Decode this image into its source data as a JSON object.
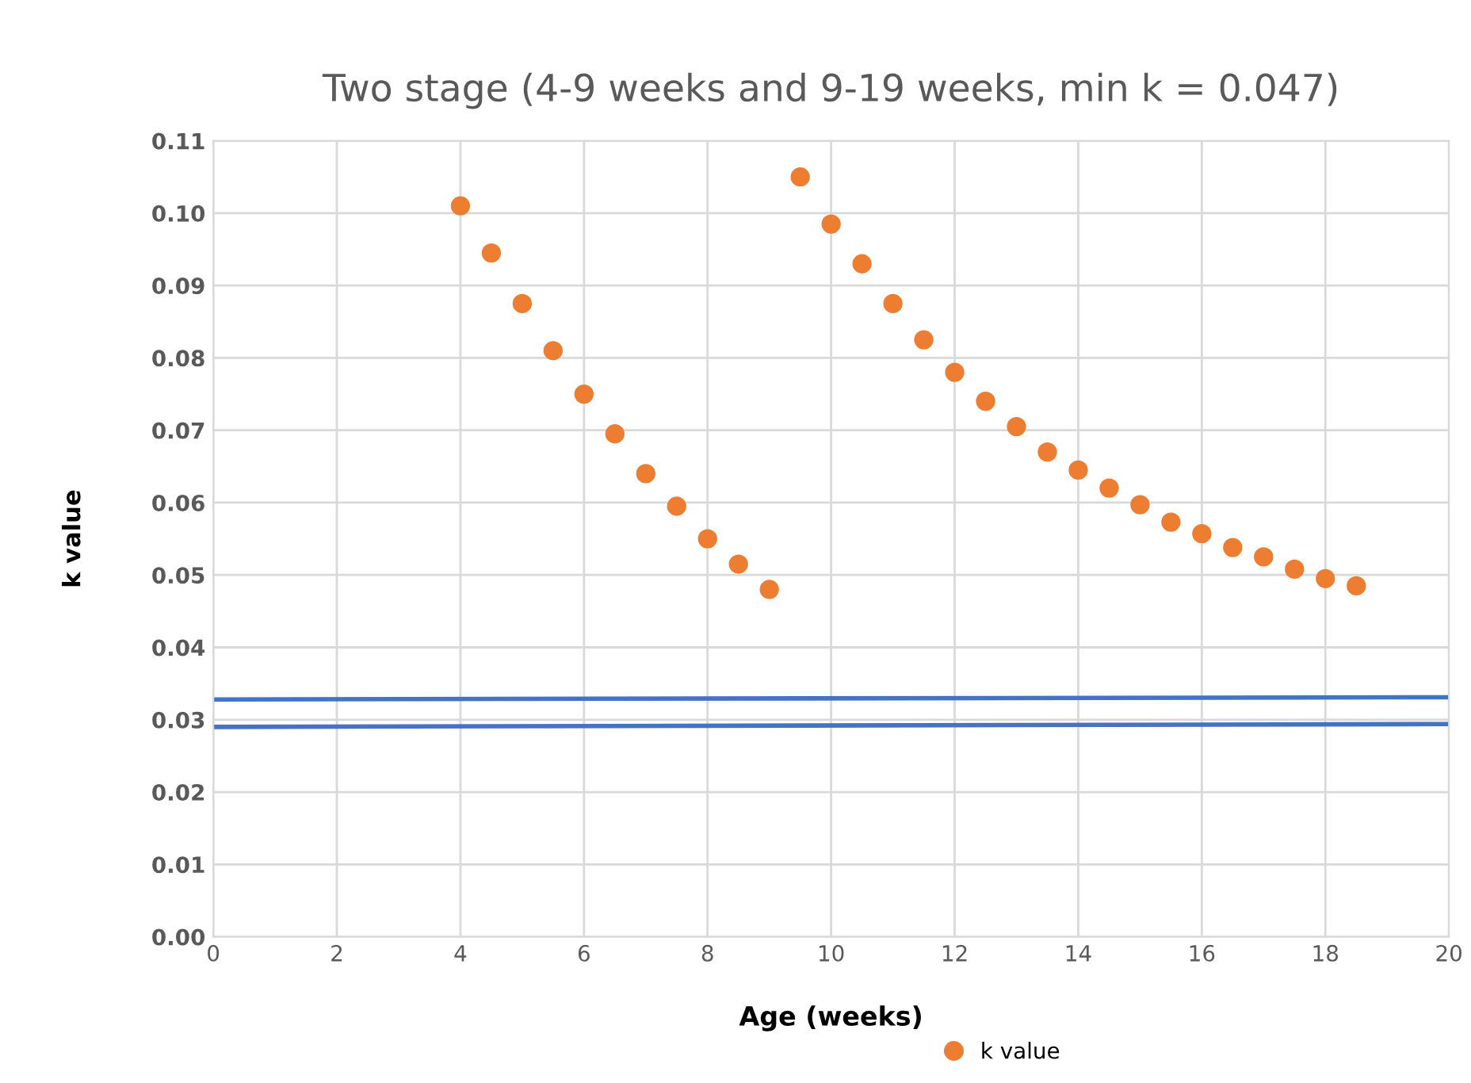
{
  "chart_data": {
    "type": "scatter",
    "title": "Two stage (4-9 weeks and 9-19 weeks, min k = 0.047)",
    "xlabel": "Age (weeks)",
    "ylabel": "k value",
    "series": [
      {
        "name": "k value",
        "color": "#ed7d31",
        "marker": "circle",
        "x": [
          4,
          4.5,
          5,
          5.5,
          6,
          6.5,
          7,
          7.5,
          8,
          8.5,
          9,
          9.5,
          10,
          10.5,
          11,
          11.5,
          12,
          12.5,
          13,
          13.5,
          14,
          14.5,
          15,
          15.5,
          16,
          16.5,
          17,
          17.5,
          18,
          18.5
        ],
        "values": [
          0.101,
          0.0945,
          0.0875,
          0.081,
          0.075,
          0.0695,
          0.064,
          0.0595,
          0.055,
          0.0515,
          0.048,
          0.105,
          0.0985,
          0.093,
          0.0875,
          0.0825,
          0.078,
          0.074,
          0.0705,
          0.067,
          0.0645,
          0.062,
          0.0597,
          0.0573,
          0.0557,
          0.0538,
          0.0525,
          0.0508,
          0.0495,
          0.0485
        ]
      },
      {
        "type": "line",
        "color": "#4472c4",
        "x": [
          0,
          20
        ],
        "values": [
          0.0328,
          0.0331
        ]
      },
      {
        "type": "line",
        "color": "#4472c4",
        "x": [
          0,
          20
        ],
        "values": [
          0.029,
          0.0294
        ]
      }
    ],
    "xlim": [
      0,
      20
    ],
    "xticks": [
      0,
      2,
      4,
      6,
      8,
      10,
      12,
      14,
      16,
      18,
      20
    ],
    "ylim": [
      0,
      0.11
    ],
    "yticks": [
      {
        "value": 0,
        "label": "0.00"
      },
      {
        "value": 0.01,
        "label": "0.01"
      },
      {
        "value": 0.02,
        "label": "0.02"
      },
      {
        "value": 0.03,
        "label": "0.03"
      },
      {
        "value": 0.04,
        "label": "0.04"
      },
      {
        "value": 0.05,
        "label": "0.05"
      },
      {
        "value": 0.06,
        "label": "0.06"
      },
      {
        "value": 0.07,
        "label": "0.07"
      },
      {
        "value": 0.08,
        "label": "0.08"
      },
      {
        "value": 0.09,
        "label": "0.09"
      },
      {
        "value": 0.1,
        "label": "0.10"
      },
      {
        "value": 0.11,
        "label": "0.11"
      }
    ],
    "grid": true,
    "legend": "bottom right"
  }
}
